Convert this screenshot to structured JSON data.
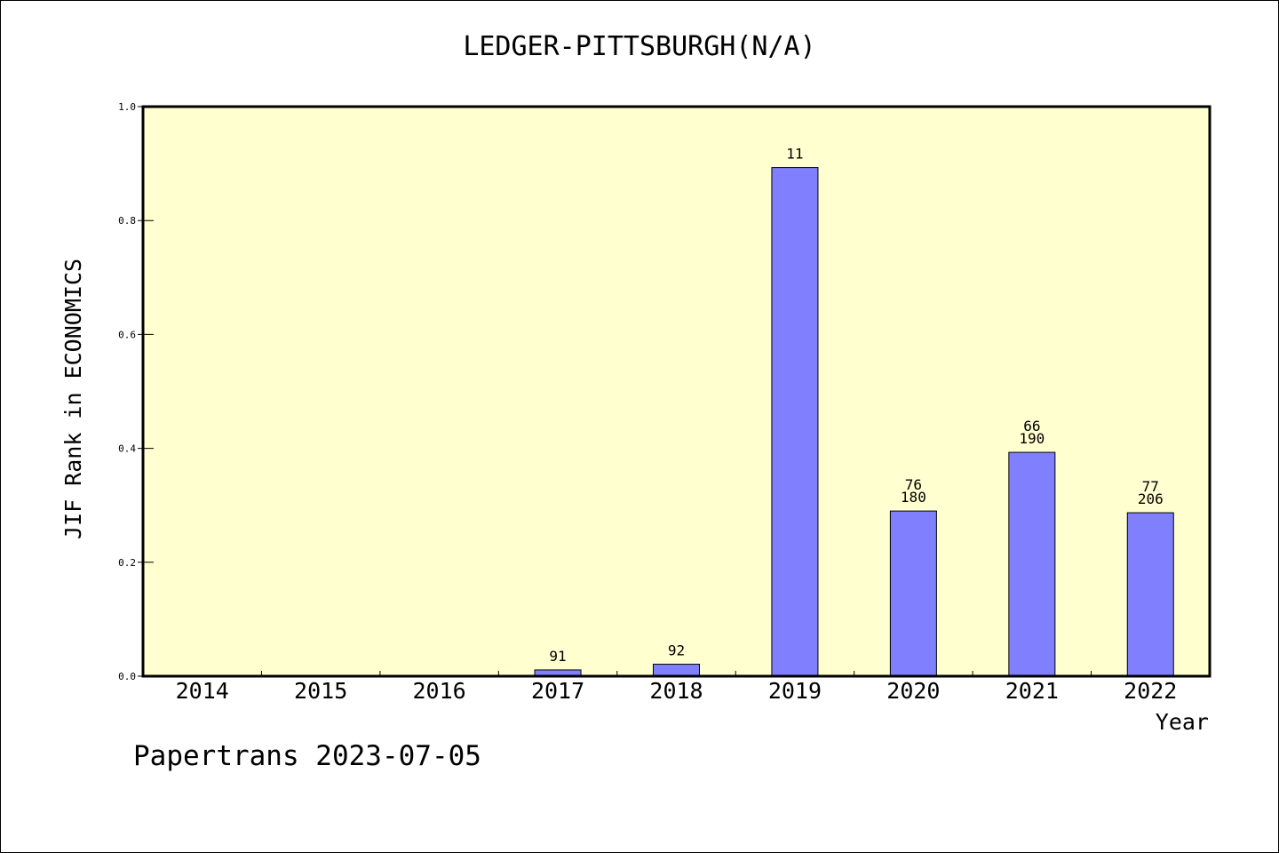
{
  "chart_data": {
    "type": "bar",
    "title": "LEDGER-PITTSBURGH(N/A)",
    "xlabel": "Year",
    "ylabel": "JIF Rank in ECONOMICS",
    "categories": [
      "2014",
      "2015",
      "2016",
      "2017",
      "2018",
      "2019",
      "2020",
      "2021",
      "2022"
    ],
    "values": [
      null,
      null,
      null,
      0.011,
      0.021,
      0.893,
      0.29,
      0.393,
      0.287
    ],
    "bar_labels": [
      [],
      [],
      [],
      [
        "91"
      ],
      [
        "92"
      ],
      [
        "11"
      ],
      [
        "76",
        "180"
      ],
      [
        "66",
        "190"
      ],
      [
        "77",
        "206"
      ]
    ],
    "ylim": [
      0,
      1
    ],
    "yticks": [
      "0.0",
      "0.2",
      "0.4",
      "0.6",
      "0.8",
      "1.0"
    ],
    "grid": false,
    "colors": {
      "plot_background": "#ffffd0",
      "bar_fill": "#8080ff",
      "bar_stroke": "#000000"
    }
  },
  "footer": {
    "text": "Papertrans 2023-07-05"
  }
}
